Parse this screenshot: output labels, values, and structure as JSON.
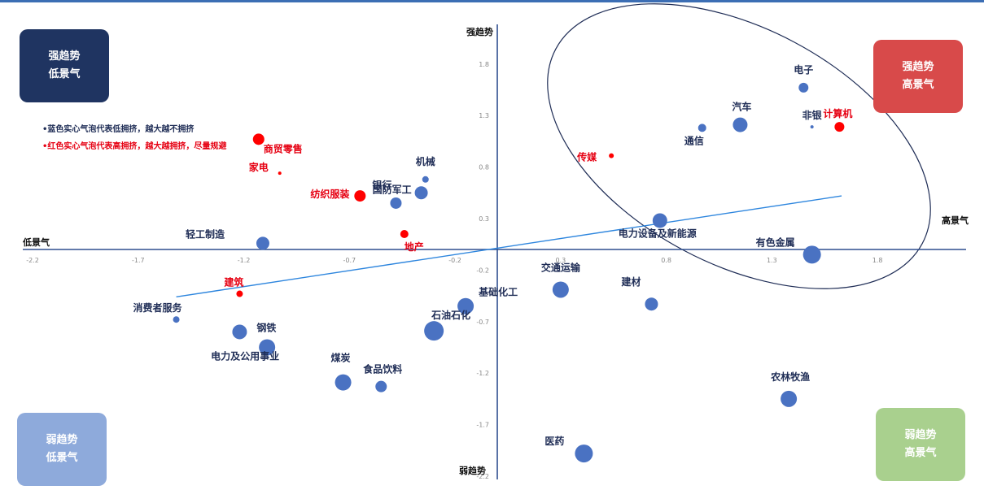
{
  "chart_data": {
    "type": "scatter",
    "xlim": [
      -2.2,
      2.2
    ],
    "ylim": [
      -2.2,
      2.2
    ],
    "x_ticks": [
      -2.2,
      -1.7,
      -1.2,
      -0.7,
      -0.2,
      0.3,
      0.8,
      1.3,
      1.8
    ],
    "y_ticks": [
      1.8,
      1.3,
      0.8,
      0.3,
      -0.2,
      -0.7,
      -1.2,
      -1.7,
      -2.2
    ],
    "axis_labels": {
      "x_low": "低景气",
      "x_high": "高景气",
      "y_high": "强趋势",
      "y_low": "弱趋势"
    },
    "grid": false,
    "points": [
      {
        "label": "电子",
        "x": 1.45,
        "y": 1.57,
        "size": 6,
        "color": "blue"
      },
      {
        "label": "非银",
        "x": 1.49,
        "y": 1.19,
        "size": 2,
        "color": "blue"
      },
      {
        "label": "计算机",
        "x": 1.62,
        "y": 1.19,
        "size": 6,
        "color": "red"
      },
      {
        "label": "汽车",
        "x": 1.15,
        "y": 1.21,
        "size": 9,
        "color": "blue"
      },
      {
        "label": "通信",
        "x": 0.97,
        "y": 1.18,
        "size": 5,
        "color": "blue"
      },
      {
        "label": "传媒",
        "x": 0.54,
        "y": 0.91,
        "size": 3,
        "color": "red"
      },
      {
        "label": "电力设备及新能源",
        "x": 0.77,
        "y": 0.28,
        "size": 9,
        "color": "blue"
      },
      {
        "label": "有色金属",
        "x": 1.49,
        "y": -0.05,
        "size": 11,
        "color": "blue"
      },
      {
        "label": "交通运输",
        "x": 0.3,
        "y": -0.39,
        "size": 10,
        "color": "blue"
      },
      {
        "label": "建材",
        "x": 0.73,
        "y": -0.53,
        "size": 8,
        "color": "blue"
      },
      {
        "label": "基础化工",
        "x": -0.15,
        "y": -0.55,
        "size": 10,
        "color": "blue"
      },
      {
        "label": "石油石化",
        "x": -0.3,
        "y": -0.79,
        "size": 12,
        "color": "blue"
      },
      {
        "label": "农林牧渔",
        "x": 1.38,
        "y": -1.45,
        "size": 10,
        "color": "blue"
      },
      {
        "label": "医药",
        "x": 0.41,
        "y": -1.98,
        "size": 11,
        "color": "blue"
      },
      {
        "label": "食品饮料",
        "x": -0.55,
        "y": -1.33,
        "size": 7,
        "color": "blue"
      },
      {
        "label": "煤炭",
        "x": -0.73,
        "y": -1.29,
        "size": 10,
        "color": "blue"
      },
      {
        "label": "电力及公用事业",
        "x": -1.09,
        "y": -0.95,
        "size": 10,
        "color": "blue"
      },
      {
        "label": "钢铁",
        "x": -1.22,
        "y": -0.8,
        "size": 9,
        "color": "blue"
      },
      {
        "label": "消费者服务",
        "x": -1.52,
        "y": -0.68,
        "size": 4,
        "color": "blue"
      },
      {
        "label": "建筑",
        "x": -1.22,
        "y": -0.43,
        "size": 4,
        "color": "red"
      },
      {
        "label": "地产",
        "x": -0.44,
        "y": 0.15,
        "size": 5,
        "color": "red"
      },
      {
        "label": "轻工制造",
        "x": -1.11,
        "y": 0.06,
        "size": 8,
        "color": "blue"
      },
      {
        "label": "纺织服装",
        "x": -0.65,
        "y": 0.52,
        "size": 7,
        "color": "red"
      },
      {
        "label": "银行",
        "x": -0.48,
        "y": 0.45,
        "size": 7,
        "color": "blue"
      },
      {
        "label": "国防军工",
        "x": -0.36,
        "y": 0.55,
        "size": 8,
        "color": "blue"
      },
      {
        "label": "机械",
        "x": -0.34,
        "y": 0.68,
        "size": 4,
        "color": "blue"
      },
      {
        "label": "商贸零售",
        "x": -1.13,
        "y": 1.07,
        "size": 7,
        "color": "red"
      },
      {
        "label": "家电",
        "x": -1.03,
        "y": 0.74,
        "size": 2,
        "color": "red"
      }
    ],
    "trend_line": [
      [
        -1.52,
        -0.46
      ],
      [
        1.63,
        0.52
      ]
    ],
    "legend_notes": [
      "•蓝色实心气泡代表低拥挤，越大越不拥挤",
      "•红色实心气泡代表高拥挤，越大越拥挤，尽量规避"
    ]
  },
  "quadrants": {
    "top_left": {
      "line1": "强趋势",
      "line2": "低景气"
    },
    "top_right": {
      "line1": "强趋势",
      "line2": "高景气"
    },
    "bottom_left": {
      "line1": "弱趋势",
      "line2": "低景气"
    },
    "bottom_right": {
      "line1": "弱趋势",
      "line2": "高景气"
    }
  },
  "colors": {
    "blue_bubble": "#4a72c2",
    "red_bubble": "#ff0000",
    "axis": "#2f4f8f",
    "trend": "#2e86de",
    "ellipse": "#1f2d56",
    "box_top_left": "#1f3461",
    "box_top_right": "#d84a4a",
    "box_bottom_left": "#8eaadb",
    "box_bottom_right": "#a9d08e",
    "label_blue": "#1f2d56",
    "label_red": "#e60012"
  }
}
